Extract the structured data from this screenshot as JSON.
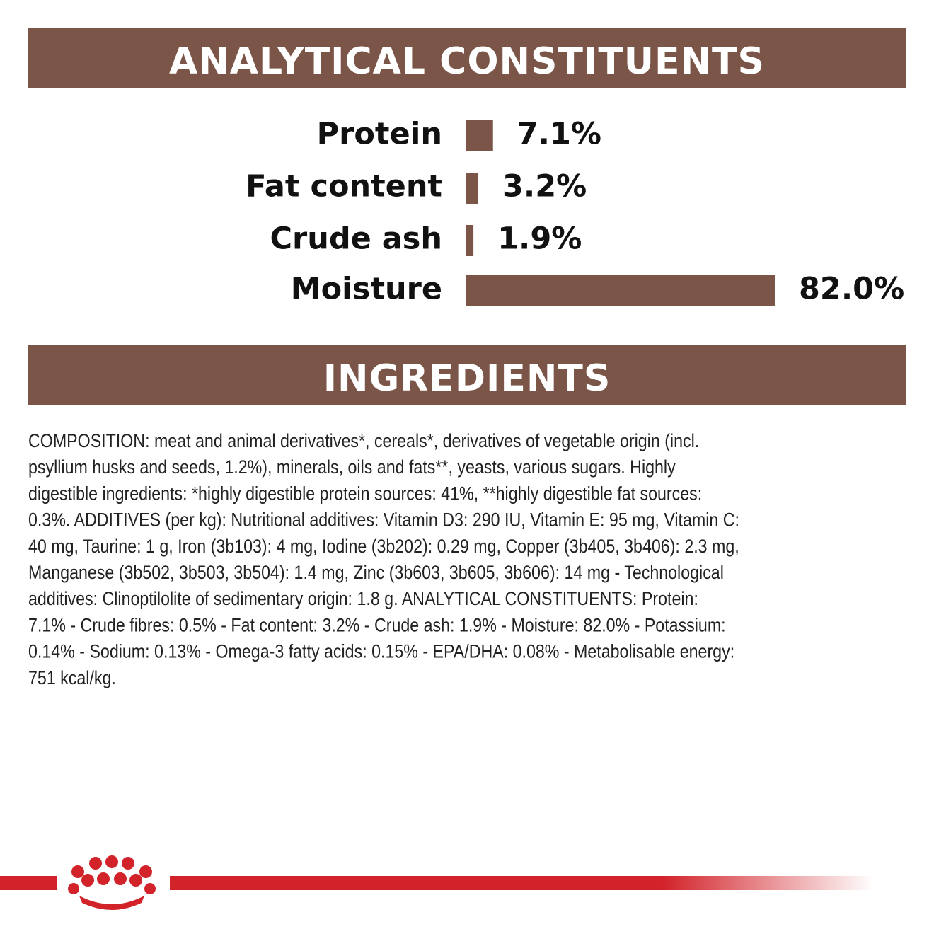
{
  "chart_data": {
    "type": "bar",
    "title": "ANALYTICAL CONSTITUENTS",
    "categories": [
      "Protein",
      "Fat content",
      "Crude ash",
      "Moisture"
    ],
    "values": [
      7.1,
      3.2,
      1.9,
      82.0
    ],
    "value_labels": [
      "7.1%",
      "3.2%",
      "1.9%",
      "82.0%"
    ],
    "color": "#7b5547",
    "orientation": "horizontal"
  },
  "ingredients": {
    "title": "INGREDIENTS",
    "lines": [
      "COMPOSITION: meat and animal derivatives*, cereals*, derivatives of vegetable origin (incl.",
      "psyllium husks and seeds, 1.2%), minerals, oils and fats**, yeasts, various sugars. Highly",
      "digestible ingredients: *highly digestible protein sources: 41%, **highly digestible fat sources:",
      "0.3%. ADDITIVES (per kg): Nutritional additives: Vitamin D3: 290 IU, Vitamin E: 95 mg, Vitamin C:",
      "40 mg, Taurine: 1 g, Iron (3b103): 4 mg, Iodine (3b202): 0.29 mg, Copper (3b405, 3b406): 2.3 mg,",
      "Manganese (3b502, 3b503, 3b504): 1.4 mg, Zinc (3b603, 3b605, 3b606): 14 mg - Technological",
      "additives: Clinoptilolite of sedimentary origin: 1.8 g. ANALYTICAL CONSTITUENTS: Protein:",
      "7.1% - Crude fibres: 0.5% - Fat content: 3.2% - Crude ash: 1.9% - Moisture: 82.0% - Potassium:",
      "0.14% - Sodium: 0.13% - Omega-3 fatty acids: 0.15% - EPA/DHA: 0.08% - Metabolisable energy:",
      "751 kcal/kg."
    ]
  }
}
